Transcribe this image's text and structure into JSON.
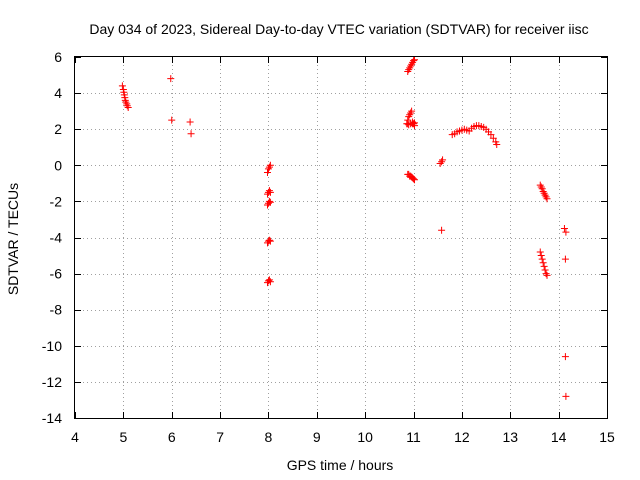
{
  "chart_data": {
    "type": "scatter",
    "title": "Day 034 of 2023, Sidereal Day-to-day VTEC variation (SDTVAR) for receiver iisc",
    "xlabel": "GPS time / hours",
    "ylabel": "SDTVAR / TECUs",
    "xlim": [
      4,
      15
    ],
    "ylim": [
      -14,
      6
    ],
    "xticks": [
      4,
      5,
      6,
      7,
      8,
      9,
      10,
      11,
      12,
      13,
      14,
      15
    ],
    "yticks": [
      6,
      4,
      2,
      0,
      -2,
      -4,
      -6,
      -8,
      -10,
      -12,
      -14
    ],
    "grid": true,
    "marker": "+",
    "color": "#ff0000",
    "series": [
      {
        "name": "SDTVAR",
        "x": [
          4.98,
          5.0,
          5.01,
          5.02,
          5.03,
          5.04,
          5.05,
          5.07,
          5.08,
          5.1,
          5.98,
          6.0,
          6.38,
          6.4,
          7.98,
          8.0,
          8.02,
          8.04,
          7.98,
          8.0,
          8.02,
          8.04,
          7.98,
          8.0,
          8.02,
          8.04,
          7.98,
          8.0,
          8.02,
          8.04,
          7.98,
          8.0,
          8.02,
          8.04,
          10.88,
          10.9,
          10.92,
          10.94,
          10.96,
          10.98,
          11.0,
          11.02,
          10.86,
          10.88,
          10.9,
          10.92,
          10.94,
          10.96,
          10.98,
          11.0,
          11.02,
          10.88,
          10.9,
          10.92,
          10.94,
          10.96,
          10.98,
          11.0,
          11.02,
          10.88,
          10.9,
          10.94,
          10.98,
          11.02,
          11.55,
          11.58,
          11.6,
          11.58,
          11.8,
          11.85,
          11.9,
          11.95,
          12.0,
          12.05,
          12.1,
          12.15,
          12.2,
          12.25,
          12.3,
          12.35,
          12.4,
          12.45,
          12.5,
          12.55,
          12.6,
          12.65,
          12.7,
          12.72,
          13.62,
          13.64,
          13.66,
          13.68,
          13.7,
          13.72,
          13.74,
          13.76,
          13.62,
          13.64,
          13.66,
          13.68,
          13.7,
          13.72,
          13.74,
          13.76,
          14.12,
          14.15,
          14.14,
          14.14,
          14.15
        ],
        "y": [
          4.4,
          4.2,
          4.05,
          3.9,
          3.75,
          3.6,
          3.5,
          3.4,
          3.3,
          3.2,
          4.8,
          2.5,
          2.4,
          1.75,
          -0.4,
          -0.2,
          -0.1,
          0.0,
          -1.6,
          -1.5,
          -1.4,
          -1.5,
          -2.2,
          -2.1,
          -2.0,
          -2.05,
          -4.3,
          -4.2,
          -4.15,
          -4.2,
          -6.5,
          -6.4,
          -6.35,
          -6.45,
          5.2,
          5.3,
          5.4,
          5.5,
          5.6,
          5.7,
          5.8,
          5.85,
          2.3,
          2.5,
          2.7,
          2.8,
          2.9,
          3.0,
          2.4,
          2.3,
          2.2,
          -0.5,
          -0.5,
          -0.6,
          -0.6,
          -0.65,
          -0.7,
          -0.75,
          -0.8,
          2.3,
          2.25,
          2.3,
          2.3,
          2.35,
          0.1,
          0.2,
          0.3,
          -3.6,
          1.7,
          1.75,
          1.85,
          1.9,
          1.95,
          2.0,
          1.95,
          1.9,
          2.05,
          2.15,
          2.2,
          2.2,
          2.15,
          2.1,
          2.0,
          1.85,
          1.7,
          1.5,
          1.3,
          1.15,
          -4.8,
          -5.0,
          -5.2,
          -5.4,
          -5.6,
          -5.8,
          -6.0,
          -6.1,
          -1.1,
          -1.2,
          -1.3,
          -1.45,
          -1.55,
          -1.65,
          -1.75,
          -1.85,
          -3.5,
          -3.7,
          -5.2,
          -10.6,
          -12.8
        ]
      }
    ]
  }
}
